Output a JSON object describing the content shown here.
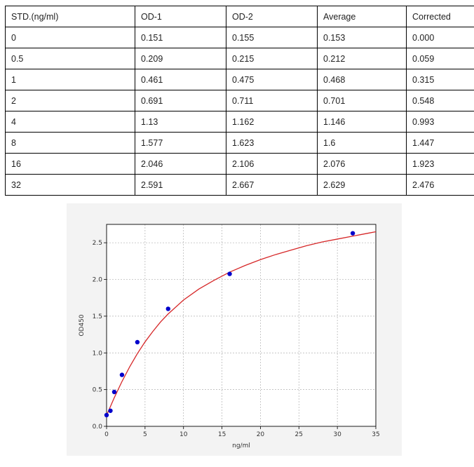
{
  "table": {
    "headers": [
      "STD.(ng/ml)",
      "OD-1",
      "OD-2",
      "Average",
      "Corrected"
    ],
    "rows": [
      [
        "0",
        "0.151",
        "0.155",
        "0.153",
        "0.000"
      ],
      [
        "0.5",
        "0.209",
        "0.215",
        "0.212",
        "0.059"
      ],
      [
        "1",
        "0.461",
        "0.475",
        "0.468",
        "0.315"
      ],
      [
        "2",
        "0.691",
        "0.711",
        "0.701",
        "0.548"
      ],
      [
        "4",
        "1.13",
        "1.162",
        "1.146",
        "0.993"
      ],
      [
        "8",
        "1.577",
        "1.623",
        "1.6",
        "1.447"
      ],
      [
        "16",
        "2.046",
        "2.106",
        "2.076",
        "1.923"
      ],
      [
        "32",
        "2.591",
        "2.667",
        "2.629",
        "2.476"
      ]
    ]
  },
  "chart_data": {
    "type": "scatter",
    "title": "",
    "xlabel": "ng/ml",
    "ylabel": "OD450",
    "xlim": [
      0,
      35
    ],
    "ylim": [
      0,
      2.75
    ],
    "xticks": [
      0,
      5,
      10,
      15,
      20,
      25,
      30,
      35
    ],
    "yticks": [
      0.0,
      0.5,
      1.0,
      1.5,
      2.0,
      2.5
    ],
    "xtick_labels": [
      "0",
      "5",
      "10",
      "15",
      "20",
      "25",
      "30",
      "35"
    ],
    "ytick_labels": [
      "0.0",
      "0.5",
      "1.0",
      "1.5",
      "2.0",
      "2.5"
    ],
    "grid": true,
    "points": {
      "x": [
        0,
        0.5,
        1,
        2,
        4,
        8,
        16,
        32
      ],
      "y": [
        0.153,
        0.212,
        0.468,
        0.701,
        1.146,
        1.6,
        2.076,
        2.629
      ]
    },
    "fit_curve": {
      "x": [
        0,
        0.5,
        1,
        1.5,
        2,
        3,
        4,
        5,
        6,
        7,
        8,
        10,
        12,
        14,
        16,
        18,
        20,
        22,
        24,
        26,
        28,
        30,
        32,
        34,
        35
      ],
      "y": [
        0.15,
        0.27,
        0.39,
        0.5,
        0.61,
        0.81,
        0.99,
        1.15,
        1.29,
        1.42,
        1.53,
        1.72,
        1.87,
        1.99,
        2.1,
        2.19,
        2.27,
        2.34,
        2.4,
        2.46,
        2.51,
        2.55,
        2.59,
        2.63,
        2.65
      ]
    },
    "colors": {
      "points": "#0000cc",
      "curve": "#d62728",
      "grid": "#b0b0b0",
      "plot_bg": "#ffffff",
      "figure_bg": "#f3f3f3"
    }
  }
}
